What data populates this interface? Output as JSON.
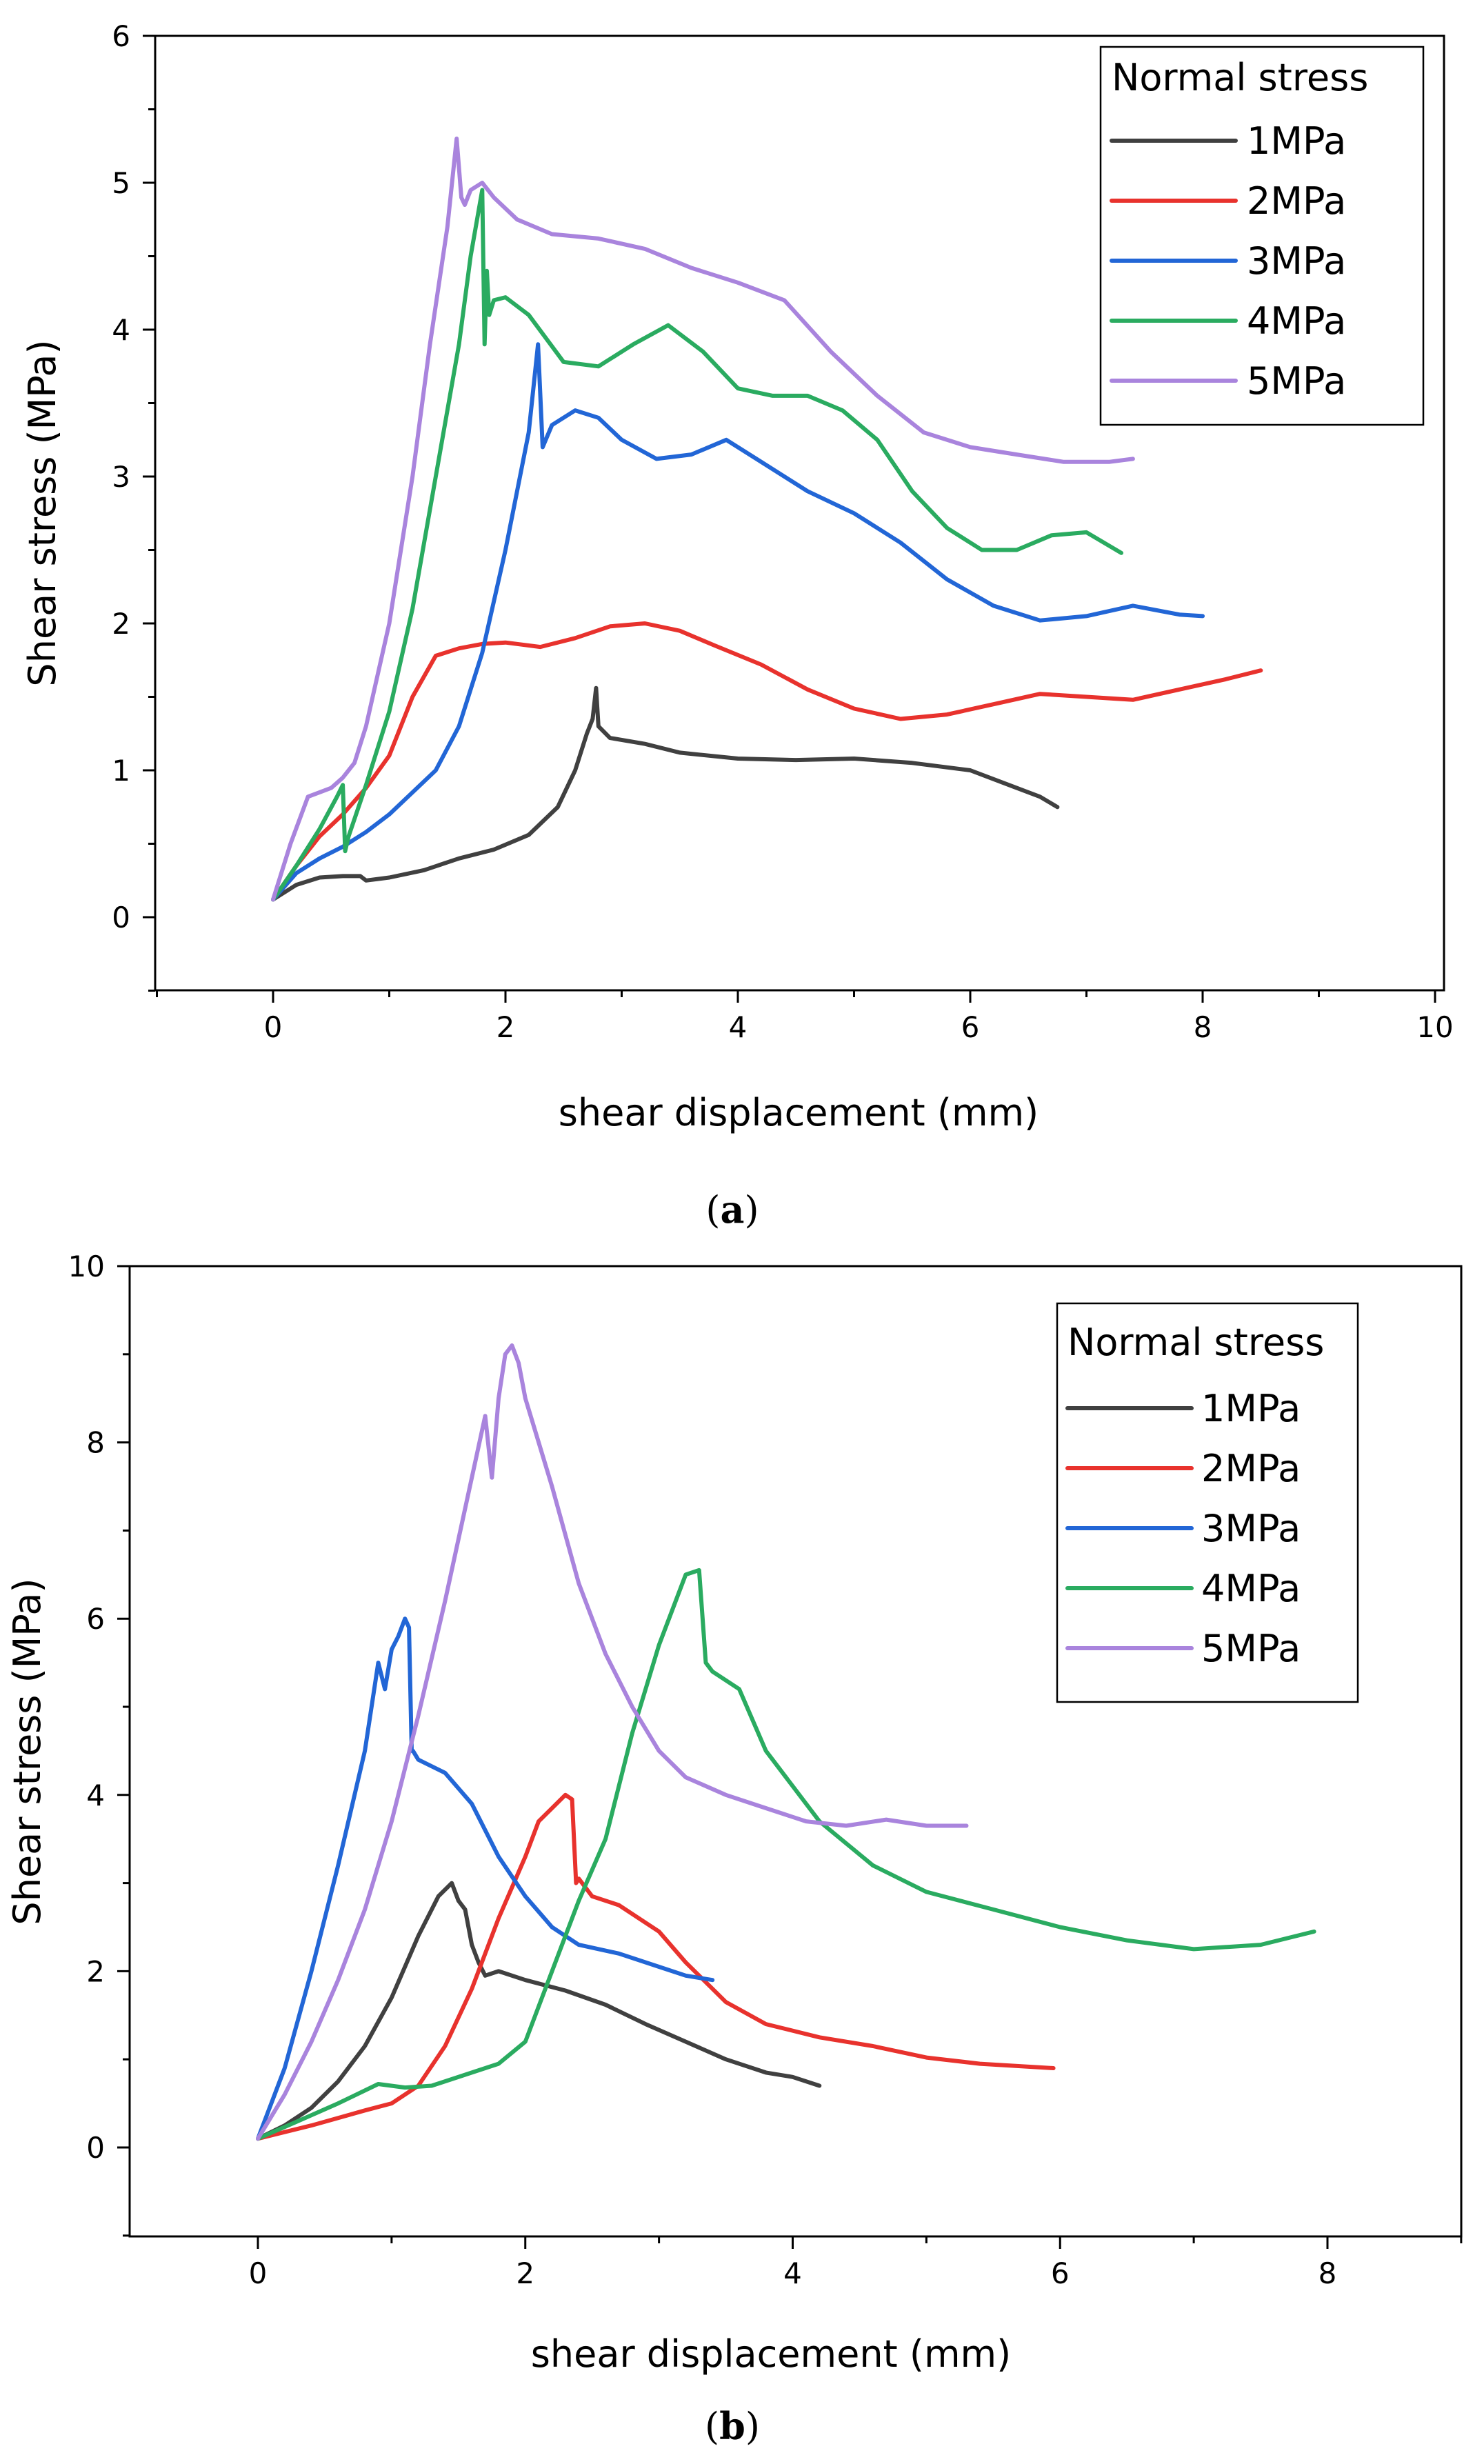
{
  "chart_data": [
    {
      "type": "line",
      "panel": "a",
      "xlabel": "shear displacement (mm)",
      "ylabel": "Shear stress (MPa)",
      "xlim": [
        -1,
        10
      ],
      "ylim": [
        -0.5,
        6
      ],
      "xticks": [
        0,
        2,
        4,
        6,
        8,
        10
      ],
      "yticks": [
        0,
        1,
        2,
        3,
        4,
        5,
        6
      ],
      "legend_title": "Normal stress",
      "series": [
        {
          "name": "1MPa",
          "color": "#404040",
          "x": [
            0,
            0.2,
            0.4,
            0.6,
            0.75,
            0.8,
            1.0,
            1.3,
            1.6,
            1.9,
            2.2,
            2.45,
            2.6,
            2.7,
            2.75,
            2.78,
            2.8,
            2.9,
            3.2,
            3.5,
            4.0,
            4.5,
            5.0,
            5.5,
            6.0,
            6.4,
            6.6,
            6.75
          ],
          "y": [
            0.12,
            0.22,
            0.27,
            0.28,
            0.28,
            0.25,
            0.27,
            0.32,
            0.4,
            0.46,
            0.56,
            0.75,
            1.0,
            1.25,
            1.35,
            1.56,
            1.3,
            1.22,
            1.18,
            1.12,
            1.08,
            1.07,
            1.08,
            1.05,
            1.0,
            0.88,
            0.82,
            0.75
          ]
        },
        {
          "name": "2MPa",
          "color": "#e8322d",
          "x": [
            0,
            0.2,
            0.4,
            0.6,
            0.8,
            1.0,
            1.2,
            1.4,
            1.6,
            1.8,
            2.0,
            2.3,
            2.6,
            2.9,
            3.2,
            3.5,
            3.8,
            4.2,
            4.6,
            5.0,
            5.4,
            5.8,
            6.2,
            6.6,
            7.0,
            7.4,
            7.8,
            8.2,
            8.5
          ],
          "y": [
            0.12,
            0.35,
            0.55,
            0.7,
            0.88,
            1.1,
            1.5,
            1.78,
            1.83,
            1.86,
            1.87,
            1.84,
            1.9,
            1.98,
            2.0,
            1.95,
            1.85,
            1.72,
            1.55,
            1.42,
            1.35,
            1.38,
            1.45,
            1.52,
            1.5,
            1.48,
            1.55,
            1.62,
            1.68
          ]
        },
        {
          "name": "3MPa",
          "color": "#2266d6",
          "x": [
            0,
            0.2,
            0.4,
            0.6,
            0.8,
            1.0,
            1.2,
            1.4,
            1.6,
            1.8,
            2.0,
            2.2,
            2.28,
            2.32,
            2.4,
            2.6,
            2.8,
            3.0,
            3.3,
            3.6,
            3.9,
            4.2,
            4.6,
            5.0,
            5.4,
            5.8,
            6.2,
            6.6,
            7.0,
            7.4,
            7.8,
            8.0
          ],
          "y": [
            0.12,
            0.3,
            0.4,
            0.48,
            0.58,
            0.7,
            0.85,
            1.0,
            1.3,
            1.8,
            2.5,
            3.3,
            3.9,
            3.2,
            3.35,
            3.45,
            3.4,
            3.25,
            3.12,
            3.15,
            3.25,
            3.1,
            2.9,
            2.75,
            2.55,
            2.3,
            2.12,
            2.02,
            2.05,
            2.12,
            2.06,
            2.05
          ]
        },
        {
          "name": "4MPa",
          "color": "#2aab60",
          "x": [
            0,
            0.2,
            0.4,
            0.55,
            0.6,
            0.62,
            0.65,
            0.8,
            1.0,
            1.2,
            1.4,
            1.6,
            1.7,
            1.8,
            1.82,
            1.84,
            1.86,
            1.9,
            2.0,
            2.2,
            2.5,
            2.8,
            3.1,
            3.4,
            3.7,
            4.0,
            4.3,
            4.6,
            4.9,
            5.2,
            5.5,
            5.8,
            6.1,
            6.4,
            6.7,
            7.0,
            7.3
          ],
          "y": [
            0.12,
            0.35,
            0.6,
            0.82,
            0.9,
            0.45,
            0.55,
            0.9,
            1.4,
            2.1,
            3.0,
            3.9,
            4.5,
            4.95,
            3.9,
            4.4,
            4.1,
            4.2,
            4.22,
            4.1,
            3.78,
            3.75,
            3.9,
            4.03,
            3.85,
            3.6,
            3.55,
            3.55,
            3.45,
            3.25,
            2.9,
            2.65,
            2.5,
            2.5,
            2.6,
            2.62,
            2.48
          ]
        },
        {
          "name": "5MPa",
          "color": "#a984dd",
          "x": [
            0,
            0.15,
            0.3,
            0.5,
            0.6,
            0.7,
            0.8,
            1.0,
            1.2,
            1.35,
            1.5,
            1.58,
            1.62,
            1.65,
            1.7,
            1.8,
            1.9,
            2.1,
            2.4,
            2.8,
            3.2,
            3.6,
            4.0,
            4.4,
            4.8,
            5.2,
            5.6,
            6.0,
            6.4,
            6.8,
            7.2,
            7.4
          ],
          "y": [
            0.12,
            0.5,
            0.82,
            0.88,
            0.95,
            1.05,
            1.3,
            2.0,
            3.0,
            3.9,
            4.7,
            5.3,
            4.9,
            4.85,
            4.95,
            5.0,
            4.9,
            4.75,
            4.65,
            4.62,
            4.55,
            4.42,
            4.32,
            4.2,
            3.85,
            3.55,
            3.3,
            3.2,
            3.15,
            3.1,
            3.1,
            3.12
          ]
        }
      ]
    },
    {
      "type": "line",
      "panel": "b",
      "xlabel": "shear displacement (mm)",
      "ylabel": "Shear stress (MPa)",
      "xlim": [
        -1,
        9
      ],
      "ylim": [
        -1,
        10
      ],
      "xticks": [
        0,
        2,
        4,
        6,
        8
      ],
      "yticks": [
        0,
        2,
        4,
        6,
        8,
        10
      ],
      "legend_title": "Normal stress",
      "series": [
        {
          "name": "1MPa",
          "color": "#404040",
          "x": [
            0,
            0.2,
            0.4,
            0.6,
            0.8,
            1.0,
            1.2,
            1.35,
            1.45,
            1.5,
            1.55,
            1.6,
            1.65,
            1.7,
            1.8,
            2.0,
            2.3,
            2.6,
            2.9,
            3.2,
            3.5,
            3.8,
            4.0,
            4.2
          ],
          "y": [
            0.1,
            0.25,
            0.45,
            0.75,
            1.15,
            1.7,
            2.4,
            2.85,
            3.0,
            2.8,
            2.7,
            2.3,
            2.1,
            1.95,
            2.0,
            1.9,
            1.78,
            1.62,
            1.4,
            1.2,
            1.0,
            0.85,
            0.8,
            0.7
          ]
        },
        {
          "name": "2MPa",
          "color": "#e8322d",
          "x": [
            0,
            0.4,
            0.8,
            1.0,
            1.2,
            1.4,
            1.6,
            1.8,
            2.0,
            2.1,
            2.2,
            2.3,
            2.35,
            2.38,
            2.4,
            2.5,
            2.7,
            3.0,
            3.2,
            3.5,
            3.8,
            4.2,
            4.6,
            5.0,
            5.4,
            5.95
          ],
          "y": [
            0.1,
            0.25,
            0.42,
            0.5,
            0.7,
            1.15,
            1.8,
            2.6,
            3.3,
            3.7,
            3.85,
            4.0,
            3.95,
            3.0,
            3.05,
            2.85,
            2.75,
            2.45,
            2.1,
            1.65,
            1.4,
            1.25,
            1.15,
            1.02,
            0.95,
            0.9
          ]
        },
        {
          "name": "3MPa",
          "color": "#2266d6",
          "x": [
            0,
            0.2,
            0.4,
            0.6,
            0.8,
            0.9,
            0.95,
            1.0,
            1.05,
            1.1,
            1.13,
            1.15,
            1.16,
            1.2,
            1.4,
            1.6,
            1.8,
            2.0,
            2.2,
            2.4,
            2.7,
            3.0,
            3.2,
            3.4
          ],
          "y": [
            0.1,
            0.9,
            2.0,
            3.2,
            4.5,
            5.5,
            5.2,
            5.65,
            5.8,
            6.0,
            5.9,
            4.5,
            4.5,
            4.4,
            4.25,
            3.9,
            3.3,
            2.85,
            2.5,
            2.3,
            2.2,
            2.05,
            1.95,
            1.9
          ]
        },
        {
          "name": "4MPa",
          "color": "#2aab60",
          "x": [
            0,
            0.3,
            0.6,
            0.9,
            1.1,
            1.3,
            1.6,
            1.8,
            2.0,
            2.2,
            2.4,
            2.6,
            2.8,
            3.0,
            3.2,
            3.3,
            3.35,
            3.4,
            3.6,
            3.8,
            4.2,
            4.6,
            5.0,
            5.5,
            6.0,
            6.5,
            7.0,
            7.5,
            7.9
          ],
          "y": [
            0.1,
            0.3,
            0.5,
            0.72,
            0.68,
            0.7,
            0.85,
            0.95,
            1.2,
            2.0,
            2.8,
            3.5,
            4.7,
            5.7,
            6.5,
            6.55,
            5.5,
            5.4,
            5.2,
            4.5,
            3.7,
            3.2,
            2.9,
            2.7,
            2.5,
            2.35,
            2.25,
            2.3,
            2.45
          ]
        },
        {
          "name": "5MPa",
          "color": "#a984dd",
          "x": [
            0,
            0.2,
            0.4,
            0.6,
            0.8,
            1.0,
            1.2,
            1.4,
            1.6,
            1.7,
            1.75,
            1.8,
            1.85,
            1.9,
            1.95,
            2.0,
            2.2,
            2.4,
            2.6,
            2.8,
            3.0,
            3.2,
            3.5,
            3.8,
            4.1,
            4.4,
            4.7,
            5.0,
            5.3
          ],
          "y": [
            0.1,
            0.6,
            1.2,
            1.9,
            2.7,
            3.7,
            4.9,
            6.2,
            7.6,
            8.3,
            7.6,
            8.5,
            9.0,
            9.1,
            8.9,
            8.5,
            7.5,
            6.4,
            5.6,
            5.0,
            4.5,
            4.2,
            4.0,
            3.85,
            3.7,
            3.65,
            3.72,
            3.65,
            3.65
          ]
        }
      ]
    }
  ],
  "panel_labels": [
    "a",
    "b"
  ]
}
